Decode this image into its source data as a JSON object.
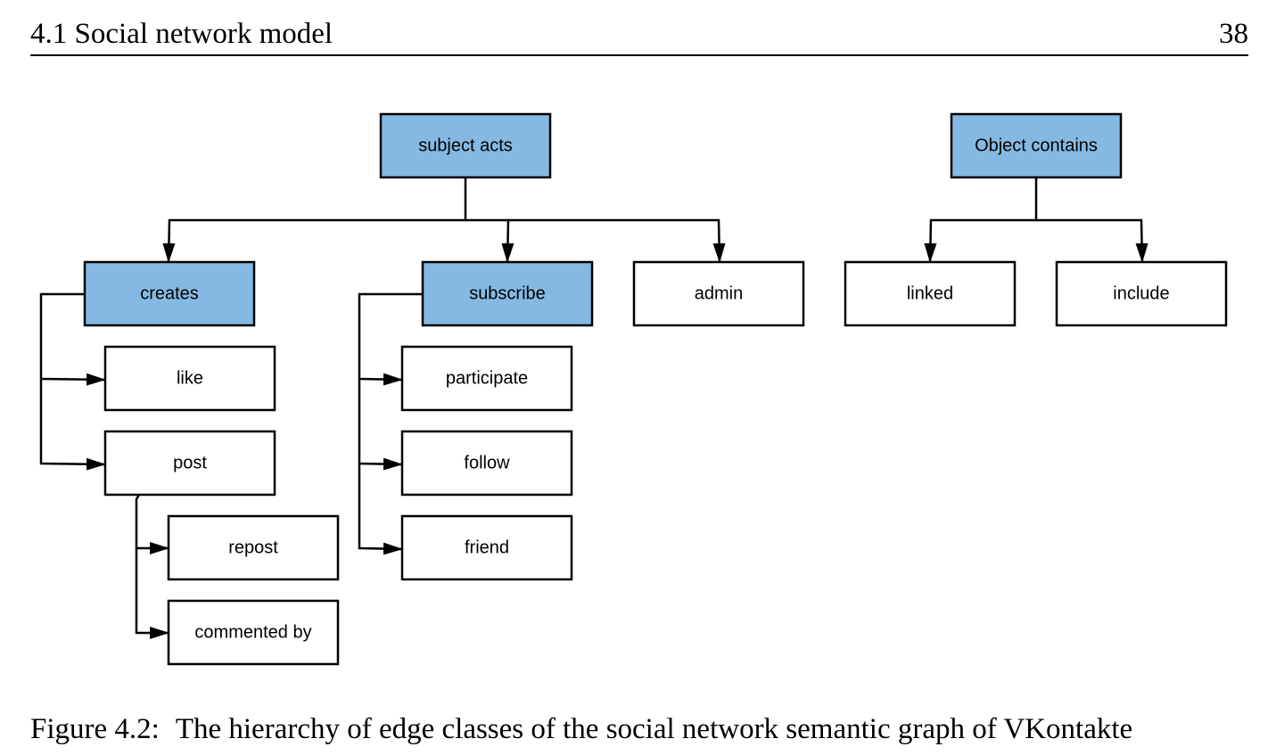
{
  "header": {
    "section": "4.1 Social network model",
    "page_number": "38"
  },
  "diagram": {
    "colors": {
      "highlight_fill": "#85B9E3",
      "plain_fill": "#ffffff",
      "stroke": "#000000"
    },
    "nodes": {
      "subject_acts": "subject acts",
      "object_contains": "Object contains",
      "creates": "creates",
      "subscribe": "subscribe",
      "admin": "admin",
      "linked": "linked",
      "include": "include",
      "like": "like",
      "post": "post",
      "repost": "repost",
      "commented_by": "commented by",
      "participate": "participate",
      "follow": "follow",
      "friend": "friend"
    }
  },
  "caption": {
    "label": "Figure 4.2:",
    "text": "The hierarchy of edge classes of the social network semantic graph of VKontakte"
  }
}
